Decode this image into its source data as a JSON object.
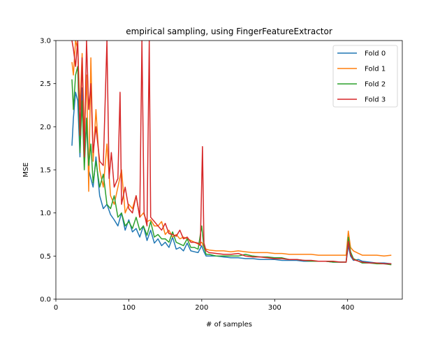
{
  "chart_data": {
    "type": "line",
    "title": "empirical sampling, using FingerFeatureExtractor",
    "xlabel": "# of samples",
    "ylabel": "MSE",
    "xlim": [
      0,
      475
    ],
    "ylim": [
      0.0,
      3.0
    ],
    "xticks": [
      0,
      100,
      200,
      300,
      400
    ],
    "yticks": [
      0.0,
      0.5,
      1.0,
      1.5,
      2.0,
      2.5,
      3.0
    ],
    "grid": false,
    "legend_position": "top-right",
    "series": [
      {
        "name": "Fold 0",
        "color": "#1f77b4",
        "x": [
          22,
          24,
          27,
          30,
          33,
          36,
          39,
          42,
          45,
          48,
          51,
          55,
          60,
          65,
          70,
          75,
          80,
          85,
          90,
          95,
          100,
          105,
          110,
          115,
          120,
          125,
          130,
          135,
          140,
          145,
          150,
          155,
          160,
          165,
          170,
          175,
          180,
          185,
          190,
          195,
          200,
          203,
          206,
          210,
          220,
          230,
          240,
          250,
          260,
          270,
          280,
          290,
          300,
          310,
          320,
          330,
          340,
          350,
          360,
          370,
          380,
          390,
          398,
          401,
          404,
          408,
          415,
          420,
          430,
          440,
          450,
          460
        ],
        "y": [
          1.78,
          2.1,
          2.4,
          2.3,
          1.65,
          2.45,
          1.75,
          2.0,
          1.5,
          1.4,
          1.3,
          1.65,
          1.2,
          1.05,
          1.1,
          0.98,
          0.92,
          0.85,
          1.0,
          0.8,
          0.92,
          0.78,
          0.82,
          0.72,
          0.85,
          0.68,
          0.8,
          0.65,
          0.7,
          0.62,
          0.66,
          0.6,
          0.72,
          0.58,
          0.6,
          0.56,
          0.65,
          0.56,
          0.55,
          0.54,
          0.62,
          0.55,
          0.5,
          0.5,
          0.5,
          0.49,
          0.48,
          0.48,
          0.47,
          0.47,
          0.46,
          0.46,
          0.46,
          0.45,
          0.45,
          0.45,
          0.44,
          0.44,
          0.44,
          0.44,
          0.43,
          0.43,
          0.43,
          0.62,
          0.5,
          0.45,
          0.46,
          0.44,
          0.43,
          0.42,
          0.42,
          0.41
        ]
      },
      {
        "name": "Fold 1",
        "color": "#ff7f0e",
        "x": [
          22,
          24,
          27,
          30,
          33,
          36,
          39,
          42,
          45,
          48,
          51,
          55,
          60,
          65,
          70,
          75,
          80,
          85,
          90,
          95,
          100,
          105,
          110,
          115,
          120,
          125,
          130,
          135,
          140,
          145,
          150,
          155,
          160,
          165,
          170,
          175,
          180,
          185,
          190,
          195,
          200,
          203,
          206,
          210,
          220,
          230,
          240,
          250,
          260,
          270,
          280,
          290,
          300,
          310,
          320,
          330,
          340,
          350,
          360,
          370,
          380,
          390,
          398,
          401,
          404,
          408,
          415,
          420,
          430,
          440,
          450,
          460
        ],
        "y": [
          2.75,
          2.6,
          3.0,
          2.9,
          2.2,
          2.85,
          1.9,
          2.6,
          1.25,
          2.8,
          1.6,
          2.2,
          1.5,
          1.3,
          1.8,
          1.2,
          1.1,
          1.3,
          1.5,
          1.0,
          1.1,
          1.05,
          1.2,
          0.95,
          1.0,
          0.9,
          0.92,
          0.85,
          0.85,
          0.9,
          0.75,
          0.8,
          0.72,
          0.75,
          0.7,
          0.72,
          0.7,
          0.68,
          0.66,
          0.64,
          0.66,
          0.6,
          0.58,
          0.57,
          0.56,
          0.56,
          0.55,
          0.56,
          0.55,
          0.54,
          0.54,
          0.54,
          0.53,
          0.53,
          0.52,
          0.52,
          0.52,
          0.52,
          0.51,
          0.51,
          0.51,
          0.51,
          0.51,
          0.79,
          0.6,
          0.56,
          0.53,
          0.51,
          0.51,
          0.51,
          0.5,
          0.51
        ]
      },
      {
        "name": "Fold 2",
        "color": "#2ca02c",
        "x": [
          22,
          24,
          27,
          30,
          33,
          36,
          39,
          42,
          45,
          48,
          51,
          55,
          60,
          65,
          70,
          75,
          80,
          85,
          90,
          95,
          100,
          105,
          110,
          115,
          120,
          125,
          130,
          135,
          140,
          145,
          150,
          155,
          160,
          165,
          170,
          175,
          180,
          185,
          190,
          195,
          200,
          203,
          206,
          210,
          220,
          230,
          240,
          250,
          260,
          270,
          280,
          290,
          300,
          310,
          320,
          330,
          340,
          350,
          360,
          370,
          380,
          390,
          398,
          401,
          404,
          408,
          415,
          420,
          430,
          440,
          450,
          460
        ],
        "y": [
          2.55,
          2.2,
          2.6,
          2.7,
          1.7,
          2.3,
          1.5,
          2.1,
          1.55,
          1.8,
          1.35,
          1.6,
          1.3,
          1.45,
          1.1,
          1.05,
          1.2,
          0.95,
          1.0,
          0.85,
          0.9,
          0.82,
          0.95,
          0.8,
          0.85,
          0.74,
          0.9,
          0.72,
          0.75,
          0.7,
          0.7,
          0.66,
          0.78,
          0.66,
          0.64,
          0.62,
          0.7,
          0.6,
          0.6,
          0.58,
          0.85,
          0.6,
          0.52,
          0.52,
          0.5,
          0.5,
          0.5,
          0.5,
          0.52,
          0.5,
          0.49,
          0.49,
          0.48,
          0.48,
          0.46,
          0.46,
          0.45,
          0.44,
          0.44,
          0.44,
          0.43,
          0.43,
          0.43,
          0.72,
          0.55,
          0.47,
          0.44,
          0.42,
          0.42,
          0.41,
          0.41,
          0.4
        ]
      },
      {
        "name": "Fold 3",
        "color": "#d62728",
        "x": [
          22,
          24,
          27,
          30,
          33,
          36,
          39,
          42,
          45,
          48,
          51,
          55,
          60,
          65,
          70,
          73,
          76,
          80,
          85,
          88,
          90,
          95,
          100,
          105,
          110,
          115,
          118,
          121,
          125,
          128,
          130,
          135,
          140,
          145,
          150,
          155,
          160,
          165,
          170,
          175,
          180,
          185,
          190,
          195,
          198,
          201,
          203,
          206,
          210,
          220,
          230,
          240,
          250,
          260,
          270,
          280,
          290,
          300,
          310,
          320,
          330,
          340,
          350,
          360,
          370,
          380,
          390,
          398,
          401,
          404,
          408,
          415,
          420,
          430,
          440,
          450,
          460
        ],
        "y": [
          3.0,
          2.9,
          2.7,
          3.0,
          1.9,
          2.8,
          1.65,
          3.0,
          2.2,
          2.5,
          1.7,
          2.0,
          1.6,
          1.55,
          3.0,
          1.4,
          1.7,
          1.3,
          1.4,
          2.4,
          1.1,
          1.3,
          1.05,
          1.0,
          1.2,
          0.95,
          3.0,
          1.0,
          0.85,
          3.0,
          0.95,
          0.9,
          0.85,
          0.8,
          0.88,
          0.76,
          0.75,
          0.73,
          0.8,
          0.7,
          0.72,
          0.66,
          0.66,
          0.65,
          0.62,
          1.77,
          0.65,
          0.56,
          0.54,
          0.53,
          0.52,
          0.52,
          0.53,
          0.5,
          0.49,
          0.49,
          0.48,
          0.47,
          0.47,
          0.46,
          0.46,
          0.45,
          0.45,
          0.44,
          0.44,
          0.44,
          0.43,
          0.43,
          0.67,
          0.52,
          0.46,
          0.44,
          0.43,
          0.42,
          0.42,
          0.41,
          0.41
        ]
      }
    ]
  }
}
